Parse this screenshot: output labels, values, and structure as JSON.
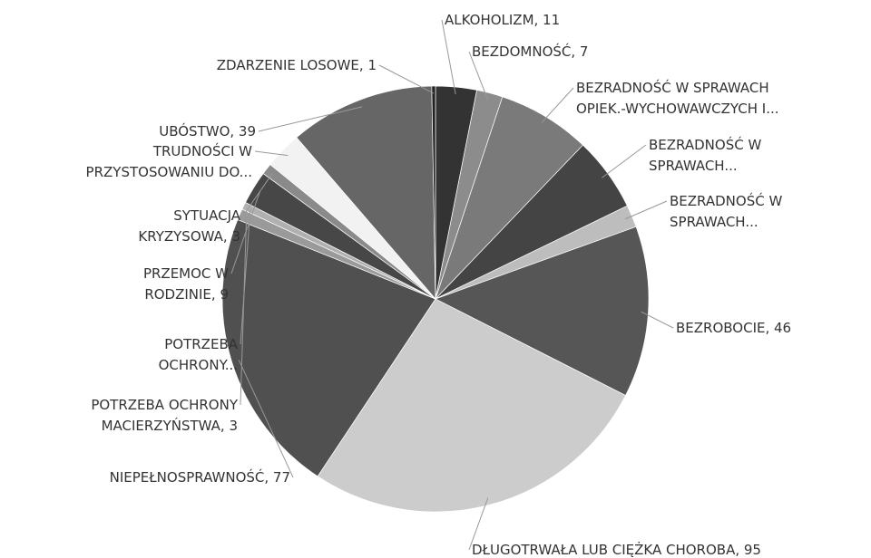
{
  "chart_data": {
    "type": "pie",
    "categories": [
      [
        "ALKOHOLIZM, 11"
      ],
      [
        "BEZDOMNOŚĆ, 7"
      ],
      [
        "BEZRADNOŚĆ W SPRAWACH",
        "OPIEK.-WYCHOWAWCZYCH I..."
      ],
      [
        "BEZRADNOŚĆ W",
        "SPRAWACH..."
      ],
      [
        "BEZRADNOŚĆ W",
        "SPRAWACH..."
      ],
      [
        "BEZROBOCIE, 46"
      ],
      [
        "DŁUGOTRWAŁA LUB CIĘŻKA CHOROBA, 95"
      ],
      [
        "NIEPEŁNOSPRAWNOŚĆ, 77"
      ],
      [
        "POTRZEBA OCHRONY",
        "MACIERZYŃSTWA, 3"
      ],
      [
        "POTRZEBA",
        "OCHRONY..."
      ],
      [
        "PRZEMOC W",
        "RODZINIE, 9"
      ],
      [
        "SYTUACJA",
        "KRYZYSOWA, 3"
      ],
      [
        "TRUDNOŚCI W",
        "PRZYSTOSOWANIU DO..."
      ],
      [
        "UBÓSTWO, 39"
      ],
      [
        "ZDARZENIE LOSOWE, 1"
      ]
    ],
    "values": [
      11,
      7,
      25,
      20,
      6,
      46,
      95,
      77,
      3,
      2,
      9,
      3,
      10,
      39,
      1
    ],
    "colors": [
      "#333333",
      "#8c8c8c",
      "#7a7a7a",
      "#444444",
      "#bdbdbd",
      "#565656",
      "#cccccc",
      "#505050",
      "#9a9a9a",
      "#b0b0b0",
      "#474747",
      "#8a8a8a",
      "#f2f2f2",
      "#666666",
      "#222222"
    ]
  }
}
